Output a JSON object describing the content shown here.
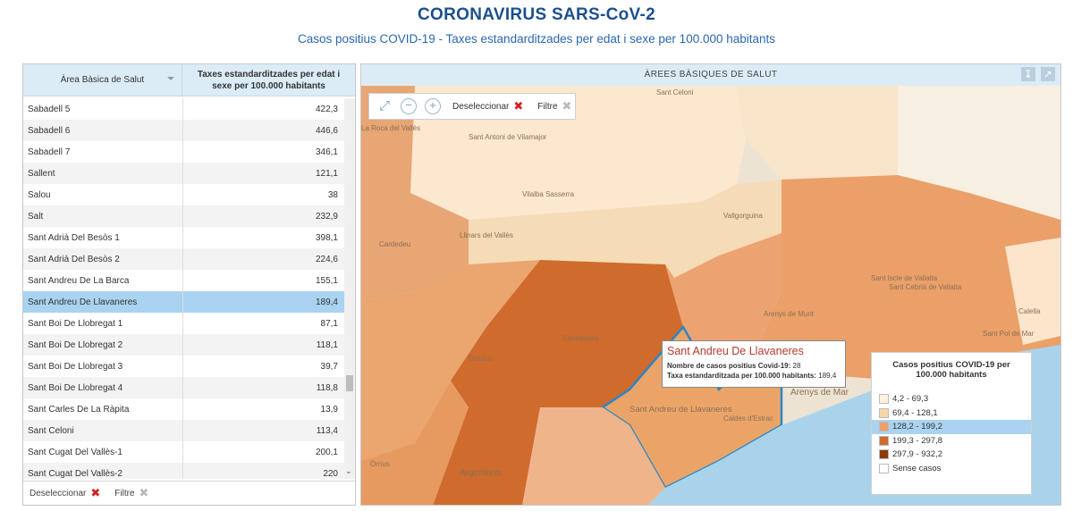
{
  "header": {
    "title": "CORONAVIRUS SARS-CoV-2",
    "subtitle": "Casos positius COVID-19 - Taxes estandarditzades per edat i sexe per 100.000 habitants"
  },
  "table": {
    "col1_header": "Àrea Bàsica de Salut",
    "col2_header": "Taxes estandarditzades per edat i sexe per 100.000 habitants",
    "rows": [
      {
        "name": "Sabadell 5",
        "value": "422,3"
      },
      {
        "name": "Sabadell 6",
        "value": "446,6"
      },
      {
        "name": "Sabadell 7",
        "value": "346,1"
      },
      {
        "name": "Sallent",
        "value": "121,1"
      },
      {
        "name": "Salou",
        "value": "38"
      },
      {
        "name": "Salt",
        "value": "232,9"
      },
      {
        "name": "Sant Adrià Del Besòs 1",
        "value": "398,1"
      },
      {
        "name": "Sant Adrià Del Besòs 2",
        "value": "224,6"
      },
      {
        "name": "Sant Andreu De La Barca",
        "value": "155,1"
      },
      {
        "name": "Sant Andreu De Llavaneres",
        "value": "189,4",
        "selected": true
      },
      {
        "name": "Sant Boi De Llobregat 1",
        "value": "87,1"
      },
      {
        "name": "Sant Boi De Llobregat 2",
        "value": "118,1"
      },
      {
        "name": "Sant Boi De Llobregat 3",
        "value": "39,7"
      },
      {
        "name": "Sant Boi De Llobregat 4",
        "value": "118,8"
      },
      {
        "name": "Sant Carles De La Ràpita",
        "value": "13,9"
      },
      {
        "name": "Sant Celoni",
        "value": "113,4"
      },
      {
        "name": "Sant Cugat Del Vallès-1",
        "value": "200,1"
      },
      {
        "name": "Sant Cugat Del Vallès-2",
        "value": "220"
      }
    ],
    "footer": {
      "deselect_label": "Deseleccionar",
      "filter_label": "Filtre"
    }
  },
  "map": {
    "header": "ÀREES BÀSIQUES DE SALUT",
    "toolbar": {
      "deselect_label": "Deseleccionar",
      "filter_label": "Filtre"
    },
    "place_labels": [
      "Sant Celoni",
      "Llinars del Vallès",
      "Vallgorguina",
      "Cardedeu",
      "Sant Antoni de Vilamajor",
      "Vilalba Sasserra",
      "Sant Iscle de Vallalta",
      "Sant Cebrià de Vallalta",
      "Arenys de Munt",
      "Canyamars",
      "Dosrius",
      "Argentona",
      "Sant Andreu de Llavaneres",
      "Caldes d'Estrac",
      "Arenys de Mar",
      "Calella",
      "Sant Pol de Mar",
      "Òrrius",
      "La Roca del Vallès"
    ],
    "tooltip": {
      "title": "Sant Andreu De Llavaneres",
      "line1_label": "Nombre de casos positius Covid-19:",
      "line1_value": "28",
      "line2_label": "Taxa estandarditzada per 100.000 habitants:",
      "line2_value": "189,4"
    },
    "legend": {
      "title": "Casos positius COVID-19 per 100.000 habitants",
      "items": [
        {
          "label": "4,2 - 69,3",
          "color": "#fdf2df"
        },
        {
          "label": "69,4 - 128,1",
          "color": "#f8d6a6"
        },
        {
          "label": "128,2 - 199,2",
          "color": "#eba06a",
          "highlighted": true
        },
        {
          "label": "199,3 - 297,8",
          "color": "#cf6a2c"
        },
        {
          "label": "297,9 - 932,2",
          "color": "#8c3a0b"
        },
        {
          "label": "Sense casos",
          "color": "#ffffff"
        }
      ]
    },
    "colors": {
      "sea": "#a9d3ea",
      "selected_outline": "#2b86c8"
    }
  }
}
